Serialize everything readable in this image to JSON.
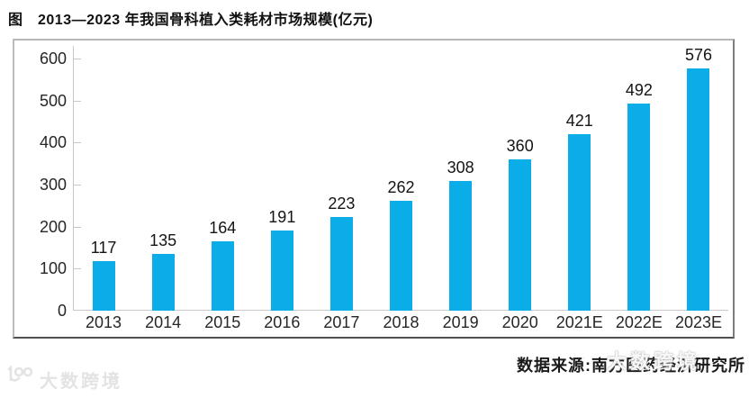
{
  "title": "图　2013—2023 年我国骨科植入类耗材市场规模(亿元)",
  "chart_data": {
    "type": "bar",
    "title": "2013—2023 年我国骨科植入类耗材市场规模(亿元)",
    "categories": [
      "2013",
      "2014",
      "2015",
      "2016",
      "2017",
      "2018",
      "2019",
      "2020",
      "2021E",
      "2022E",
      "2023E"
    ],
    "values": [
      117,
      135,
      164,
      191,
      223,
      262,
      308,
      360,
      421,
      492,
      576
    ],
    "xlabel": "",
    "ylabel": "",
    "ylim": [
      0,
      600
    ],
    "yticks": [
      0,
      100,
      200,
      300,
      400,
      500,
      600
    ],
    "grid": false,
    "legend": "none",
    "bar_color": "#0aade8",
    "data_labels": true
  },
  "source": "数据来源:南方医药经济研究所",
  "watermarks": {
    "bottom_left_text": "大数跨境",
    "over_source_text": "大数跨境"
  },
  "colors": {
    "bar": "#0aade8",
    "axis_line": "#c9c9c9",
    "text": "#1a1a1a",
    "watermark_gray": "#e3e3e3"
  }
}
